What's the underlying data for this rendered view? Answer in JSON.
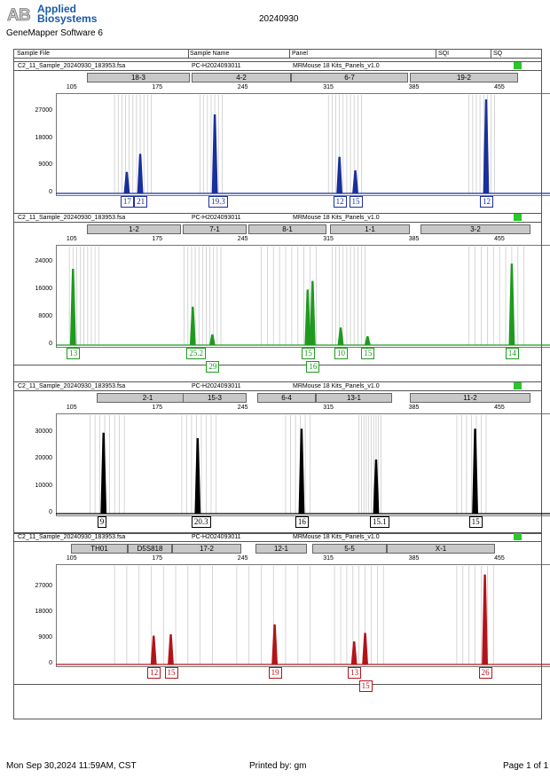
{
  "header": {
    "brand_line1": "Applied",
    "brand_line2": "Biosystems",
    "software": "GeneMapper Software 6",
    "run_id": "20240930"
  },
  "columns": {
    "sample_file": "Sample File",
    "sample_name": "Sample Name",
    "panel": "Panel",
    "sqi": "SQI",
    "sq": "SQ"
  },
  "colors": {
    "blue": "#1a2f9a",
    "green": "#1f9a1f",
    "black": "#000000",
    "red": "#b3141a",
    "status_ok": "#2ec62e"
  },
  "panels": [
    {
      "file": "C2_11_Sample_20240930_183953.fsa",
      "name": "PC-H2024093011",
      "panel": "MRMouse 18 Kits_Panels_v1.0",
      "color": "#1a2f9a",
      "x_ticks": [
        "105",
        "175",
        "245",
        "315",
        "385",
        "455"
      ],
      "y_ticks": [
        "27000",
        "18000",
        "9000",
        "0"
      ],
      "y_max": 32000,
      "markers": [
        "18-3",
        "4-2",
        "6-7",
        "19-2"
      ],
      "peaks": [
        {
          "x": 150,
          "h": 7000
        },
        {
          "x": 161,
          "h": 13000
        },
        {
          "x": 222,
          "h": 26000
        },
        {
          "x": 324,
          "h": 12000
        },
        {
          "x": 337,
          "h": 7500
        },
        {
          "x": 444,
          "h": 31000
        }
      ],
      "alleles": [
        "17",
        "21",
        "19.3",
        "12",
        "15",
        "12"
      ]
    },
    {
      "file": "C2_11_Sample_20240930_183953.fsa",
      "name": "PC-H2024093011",
      "panel": "MRMouse 18 Kits_Panels_v1.0",
      "color": "#1f9a1f",
      "x_ticks": [
        "105",
        "175",
        "245",
        "315",
        "385",
        "455"
      ],
      "y_ticks": [
        "24000",
        "16000",
        "8000",
        "0"
      ],
      "y_max": 28000,
      "markers": [
        "1-2",
        "7-1",
        "8-1",
        "1-1",
        "3-2"
      ],
      "peaks": [
        {
          "x": 106,
          "h": 22000
        },
        {
          "x": 204,
          "h": 11000
        },
        {
          "x": 220,
          "h": 3000
        },
        {
          "x": 298,
          "h": 16000
        },
        {
          "x": 302,
          "h": 18500
        },
        {
          "x": 325,
          "h": 5000
        },
        {
          "x": 347,
          "h": 2500
        },
        {
          "x": 465,
          "h": 23500
        }
      ],
      "alleles": [
        "13",
        "25.2",
        "29",
        "15",
        "16",
        "10",
        "15",
        "14"
      ]
    },
    {
      "file": "C2_11_Sample_20240930_183953.fsa",
      "name": "PC-H2024093011",
      "panel": "MRMouse 18 Kits_Panels_v1.0",
      "color": "#000000",
      "x_ticks": [
        "105",
        "175",
        "245",
        "315",
        "385",
        "455"
      ],
      "y_ticks": [
        "30000",
        "20000",
        "10000",
        "0"
      ],
      "y_max": 36000,
      "markers": [
        "2-1",
        "15-3",
        "6-4",
        "13-1",
        "11-2"
      ],
      "peaks": [
        {
          "x": 131,
          "h": 30000
        },
        {
          "x": 208,
          "h": 28000
        },
        {
          "x": 293,
          "h": 31500
        },
        {
          "x": 354,
          "h": 20000
        },
        {
          "x": 435,
          "h": 31500
        }
      ],
      "alleles": [
        "9",
        "20.3",
        "16",
        "15.1",
        "15"
      ]
    },
    {
      "file": "C2_11_Sample_20240930_183953.fsa",
      "name": "PC-H2024093011",
      "panel": "MRMouse 18 Kits_Panels_v1.0",
      "color": "#b3141a",
      "x_ticks": [
        "105",
        "175",
        "245",
        "315",
        "385",
        "455"
      ],
      "y_ticks": [
        "27000",
        "18000",
        "9000",
        "0"
      ],
      "y_max": 34000,
      "markers": [
        "TH01",
        "D5S818",
        "17-2",
        "12-1",
        "5-5",
        "X-1"
      ],
      "peaks": [
        {
          "x": 172,
          "h": 10000
        },
        {
          "x": 186,
          "h": 10500
        },
        {
          "x": 271,
          "h": 14000
        },
        {
          "x": 336,
          "h": 8000
        },
        {
          "x": 345,
          "h": 11000
        },
        {
          "x": 443,
          "h": 31500
        }
      ],
      "alleles": [
        "12",
        "15",
        "19",
        "13",
        "15",
        "26"
      ]
    }
  ],
  "footer": {
    "date": "Mon Sep 30,2024 11:59AM, CST",
    "printed": "Printed by: gm",
    "page": "Page 1 of 1"
  }
}
